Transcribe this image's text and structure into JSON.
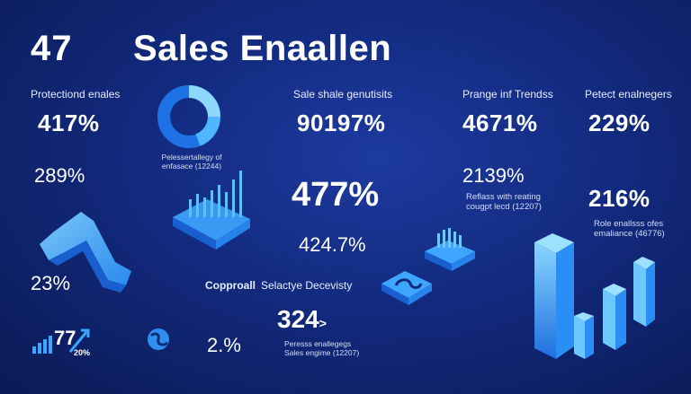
{
  "header": {
    "number": "47",
    "title": "Sales Enaallen"
  },
  "col1": {
    "label": "Protectiond enales",
    "value_a": "417%",
    "value_b": "289%",
    "value_c": "23%",
    "value_d": "77",
    "value_d_sub": "20%"
  },
  "col2": {
    "caption_line1": "Pelessertallegy of",
    "caption_line2": "enfasace (12244)"
  },
  "col3": {
    "label": "Sale shale genutisits",
    "value_a": "90197%",
    "value_b": "477%",
    "value_c": "424.7%"
  },
  "col4": {
    "label": "Prange inf Trendss",
    "value_a": "4671%",
    "value_b": "2139%",
    "caption_line1": "Reflass with reating",
    "caption_line2": "cougpt lecd (12207)"
  },
  "col5": {
    "label": "Petect enalnegers",
    "value_a": "229%",
    "value_b": "216%",
    "caption_line1": "Role enallsss ofes",
    "caption_line2": "emaliance (46776)"
  },
  "bottom": {
    "copproll": "Copproall",
    "selactye": "Selactye Decevisty",
    "value_percent": "2.%",
    "value_big": "324",
    "value_arrow": ">",
    "caption_line1": "Peresss enallegegs",
    "caption_line2": "Sales engime (12207)"
  },
  "colors": {
    "accent": "#3aa8ff",
    "accent_light": "#7fd0ff",
    "bg": "#122a7e"
  }
}
